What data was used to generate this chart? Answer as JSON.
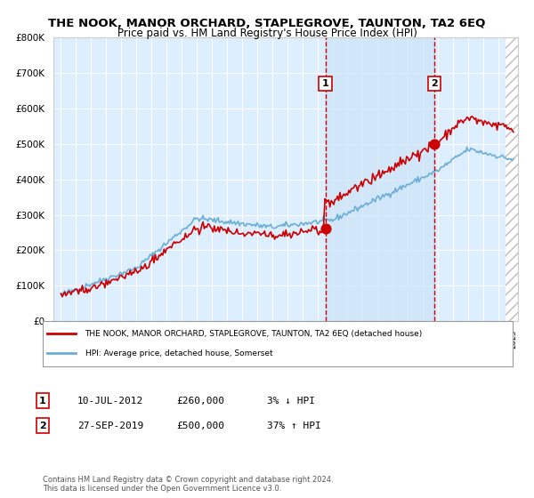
{
  "title": "THE NOOK, MANOR ORCHARD, STAPLEGROVE, TAUNTON, TA2 6EQ",
  "subtitle": "Price paid vs. HM Land Registry's House Price Index (HPI)",
  "legend_line1": "THE NOOK, MANOR ORCHARD, STAPLEGROVE, TAUNTON, TA2 6EQ (detached house)",
  "legend_line2": "HPI: Average price, detached house, Somerset",
  "annotation1_label": "1",
  "annotation1_date": "10-JUL-2012",
  "annotation1_price": "£260,000",
  "annotation1_pct": "3% ↓ HPI",
  "annotation2_label": "2",
  "annotation2_date": "27-SEP-2019",
  "annotation2_price": "£500,000",
  "annotation2_pct": "37% ↑ HPI",
  "footer": "Contains HM Land Registry data © Crown copyright and database right 2024.\nThis data is licensed under the Open Government Licence v3.0.",
  "hpi_color": "#6baed6",
  "price_color": "#cc0000",
  "background_color": "#ddeeff",
  "hatch_color": "#cccccc",
  "ylim": [
    0,
    800000
  ],
  "x_start_year": 1995,
  "x_end_year": 2025,
  "sale1_year": 2012.53,
  "sale1_value": 260000,
  "sale2_year": 2019.75,
  "sale2_value": 500000
}
